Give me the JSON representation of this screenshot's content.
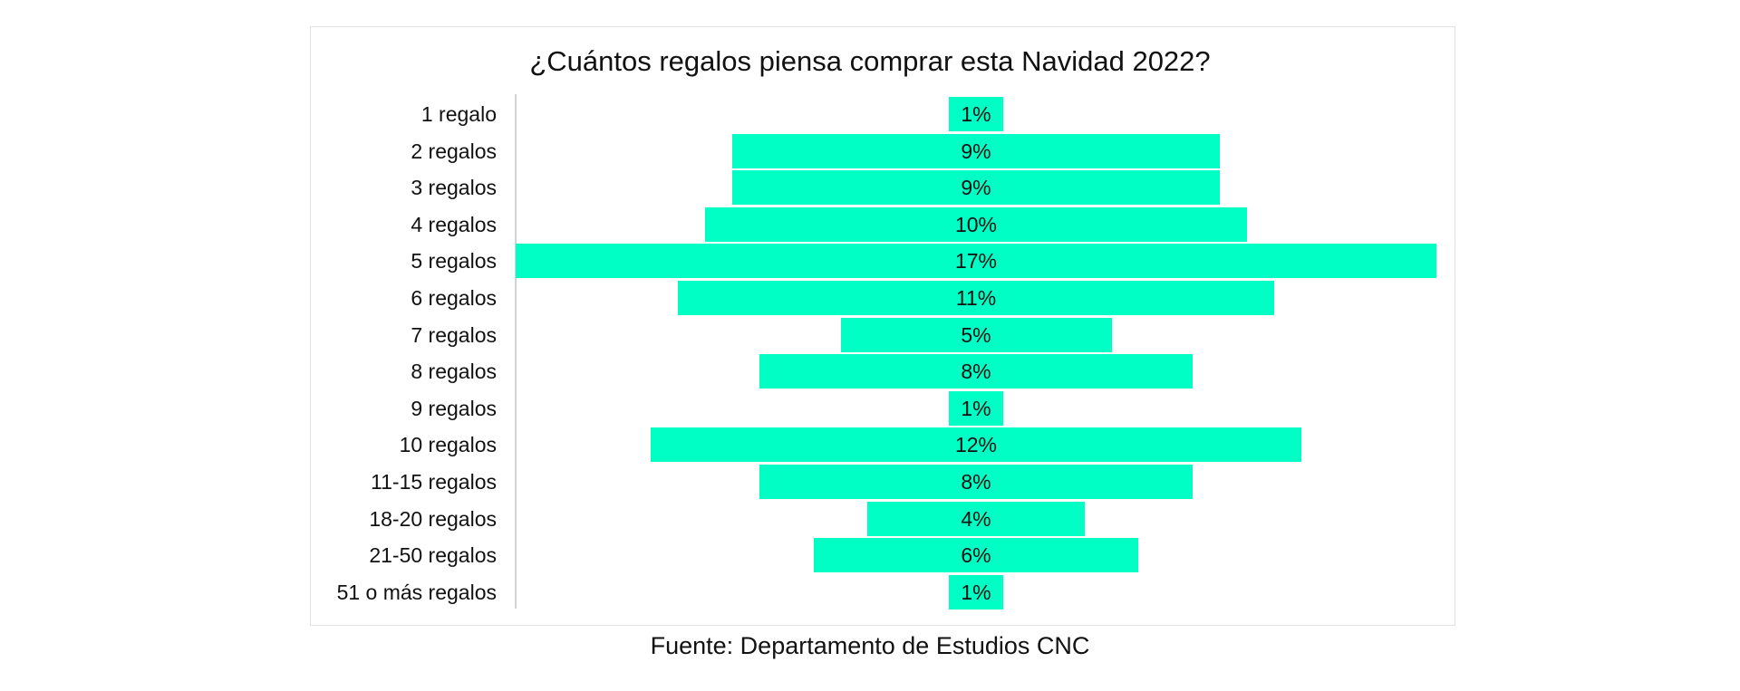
{
  "chart_data": {
    "type": "bar",
    "orientation": "horizontal-centered",
    "title": "¿Cuántos regalos piensa comprar esta Navidad 2022?",
    "categories": [
      "1 regalo",
      "2 regalos",
      "3 regalos",
      "4 regalos",
      "5 regalos",
      "6 regalos",
      "7 regalos",
      "8 regalos",
      "9 regalos",
      "10 regalos",
      "11-15 regalos",
      "18-20 regalos",
      "21-50 regalos",
      "51 o más regalos"
    ],
    "values": [
      1,
      9,
      9,
      10,
      17,
      11,
      5,
      8,
      1,
      12,
      8,
      4,
      6,
      1
    ],
    "data_labels": [
      "1%",
      "9%",
      "9%",
      "10%",
      "17%",
      "11%",
      "5%",
      "8%",
      "1%",
      "12%",
      "8%",
      "4%",
      "6%",
      "1%"
    ],
    "units": "%",
    "bar_color": "#00ffc5",
    "grid": false,
    "legend": "none"
  },
  "source": "Fuente: Departamento de Estudios CNC"
}
